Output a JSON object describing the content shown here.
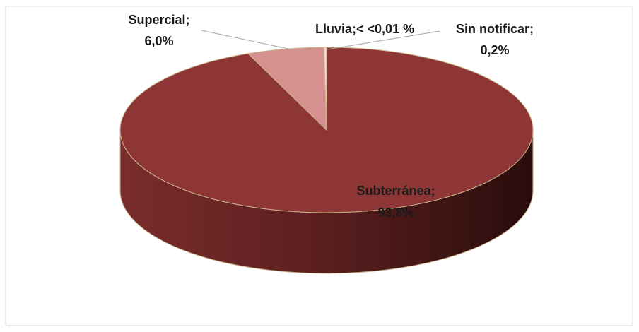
{
  "chart_data": {
    "type": "pie3d",
    "categories": [
      "Subterránea;",
      "Supercial;",
      "Lluvia;",
      "Sin notificar;"
    ],
    "values": [
      93.8,
      6.0,
      0.01,
      0.2
    ],
    "value_labels": [
      "93,8%",
      "6,0%",
      "< <0,01 %",
      "0,2%"
    ],
    "colors": [
      "#8e3535",
      "#d69090",
      "#e8c8c8",
      "#f0dcdc"
    ]
  }
}
